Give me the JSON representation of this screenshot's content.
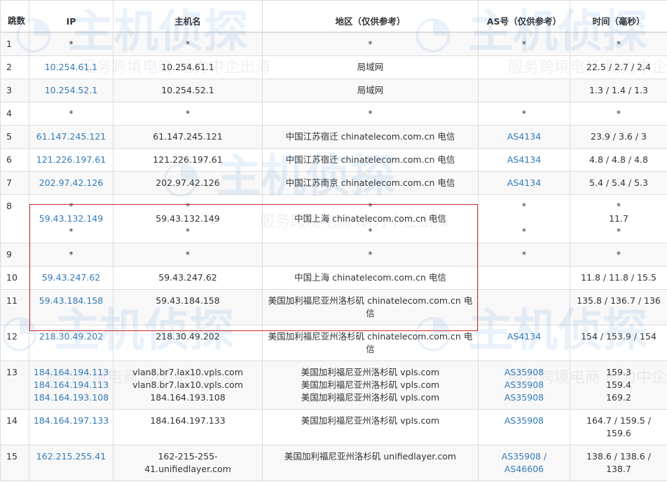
{
  "watermark": {
    "logo": "主机侦探",
    "slogan": "服务跨境电商 助力中企出海"
  },
  "colors": {
    "link": "#337ab7",
    "highlight_border": "#c9302c"
  },
  "header": {
    "hop": "跳数",
    "ip": "IP",
    "host": "主机名",
    "region": "地区（仅供参考）",
    "as": "AS号（仅供参考）",
    "time": "时间（毫秒）"
  },
  "rows": [
    {
      "hop": "1",
      "ip": [
        "*"
      ],
      "host": [
        "*"
      ],
      "region": [
        "*"
      ],
      "as": [
        "*"
      ],
      "time": [
        "*"
      ]
    },
    {
      "hop": "2",
      "ip": [
        "10.254.61.1"
      ],
      "host": [
        "10.254.61.1"
      ],
      "region": [
        "局域网"
      ],
      "as": [
        ""
      ],
      "time": [
        "22.5 / 2.7 / 2.4"
      ]
    },
    {
      "hop": "3",
      "ip": [
        "10.254.52.1"
      ],
      "host": [
        "10.254.52.1"
      ],
      "region": [
        "局域网"
      ],
      "as": [
        ""
      ],
      "time": [
        "1.3 / 1.4 / 1.3"
      ]
    },
    {
      "hop": "4",
      "ip": [
        "*"
      ],
      "host": [
        "*"
      ],
      "region": [
        "*"
      ],
      "as": [
        "*"
      ],
      "time": [
        "*"
      ]
    },
    {
      "hop": "5",
      "ip": [
        "61.147.245.121"
      ],
      "host": [
        "61.147.245.121"
      ],
      "region": [
        "中国江苏宿迁 chinatelecom.com.cn 电信"
      ],
      "as": [
        "AS4134"
      ],
      "time": [
        "23.9 / 3.6 / 3"
      ]
    },
    {
      "hop": "6",
      "ip": [
        "121.226.197.61"
      ],
      "host": [
        "121.226.197.61"
      ],
      "region": [
        "中国江苏宿迁 chinatelecom.com.cn 电信"
      ],
      "as": [
        "AS4134"
      ],
      "time": [
        "4.8 / 4.8 / 4.8"
      ]
    },
    {
      "hop": "7",
      "ip": [
        "202.97.42.126"
      ],
      "host": [
        "202.97.42.126"
      ],
      "region": [
        "中国江苏南京 chinatelecom.com.cn 电信"
      ],
      "as": [
        "AS4134"
      ],
      "time": [
        "5.4 / 5.4 / 5.3"
      ]
    },
    {
      "hop": "8",
      "ip": [
        "*",
        "59.43.132.149",
        "*"
      ],
      "host": [
        "*",
        "59.43.132.149",
        "*"
      ],
      "region": [
        "*",
        "中国上海 chinatelecom.com.cn 电信",
        "*"
      ],
      "as": [
        "*",
        "",
        "*"
      ],
      "time": [
        "*",
        "11.7",
        "*"
      ]
    },
    {
      "hop": "9",
      "ip": [
        "*"
      ],
      "host": [
        "*"
      ],
      "region": [
        "*"
      ],
      "as": [
        "*"
      ],
      "time": [
        "*"
      ]
    },
    {
      "hop": "10",
      "ip": [
        "59.43.247.62"
      ],
      "host": [
        "59.43.247.62"
      ],
      "region": [
        "中国上海 chinatelecom.com.cn 电信"
      ],
      "as": [
        ""
      ],
      "time": [
        "11.8 / 11.8 / 15.5"
      ]
    },
    {
      "hop": "11",
      "ip": [
        "59.43.184.158"
      ],
      "host": [
        "59.43.184.158"
      ],
      "region": [
        "美国加利福尼亚州洛杉矶 chinatelecom.com.cn 电信"
      ],
      "as": [
        ""
      ],
      "time": [
        "135.8 / 136.7 / 136"
      ]
    },
    {
      "hop": "12",
      "ip": [
        "218.30.49.202"
      ],
      "host": [
        "218.30.49.202"
      ],
      "region": [
        "美国加利福尼亚州洛杉矶 chinatelecom.com.cn 电信"
      ],
      "as": [
        "AS4134"
      ],
      "time": [
        "154 / 153.9 / 154"
      ]
    },
    {
      "hop": "13",
      "ip": [
        "184.164.194.113",
        "184.164.194.113",
        "184.164.193.108"
      ],
      "host": [
        "vlan8.br7.lax10.vpls.com",
        "vlan8.br7.lax10.vpls.com",
        "184.164.193.108"
      ],
      "region": [
        "美国加利福尼亚州洛杉矶 vpls.com",
        "美国加利福尼亚州洛杉矶 vpls.com",
        "美国加利福尼亚州洛杉矶 vpls.com"
      ],
      "as": [
        "AS35908",
        "AS35908",
        "AS35908"
      ],
      "time": [
        "159.3",
        "159.4",
        "169.2"
      ]
    },
    {
      "hop": "14",
      "ip": [
        "184.164.197.133"
      ],
      "host": [
        "184.164.197.133"
      ],
      "region": [
        "美国加利福尼亚州洛杉矶 vpls.com"
      ],
      "as": [
        "AS35908"
      ],
      "time": [
        "164.7 / 159.5 / 159.6"
      ]
    },
    {
      "hop": "15",
      "ip": [
        "162.215.255.41"
      ],
      "host": [
        "162-215-255-41.unifiedlayer.com"
      ],
      "region": [
        "美国加利福尼亚州洛杉矶 unifiedlayer.com"
      ],
      "as": [
        "AS35908 / AS46606"
      ],
      "time": [
        "138.6 / 138.6 / 138.7"
      ]
    }
  ]
}
